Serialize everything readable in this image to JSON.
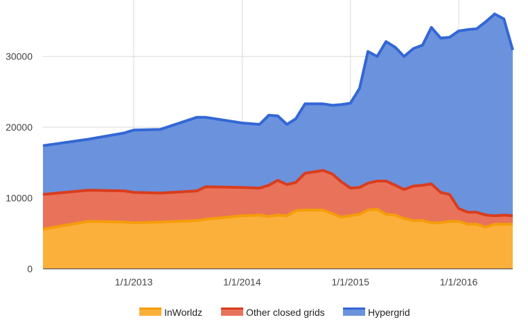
{
  "chart_data": {
    "type": "area",
    "stacked": true,
    "x": [
      "2012-03-01",
      "2012-08-01",
      "2012-12-01",
      "2013-01-01",
      "2013-04-01",
      "2013-08-01",
      "2013-09-01",
      "2014-01-01",
      "2014-03-01",
      "2014-04-01",
      "2014-05-01",
      "2014-06-01",
      "2014-07-01",
      "2014-08-01",
      "2014-10-01",
      "2014-11-01",
      "2014-12-01",
      "2015-01-01",
      "2015-02-01",
      "2015-03-01",
      "2015-04-01",
      "2015-05-01",
      "2015-06-01",
      "2015-07-01",
      "2015-08-01",
      "2015-09-01",
      "2015-10-01",
      "2015-11-01",
      "2015-12-01",
      "2016-01-01",
      "2016-02-01",
      "2016-03-01",
      "2016-04-01",
      "2016-05-01",
      "2016-06-01",
      "2016-07-01"
    ],
    "series": [
      {
        "name": "InWorldz",
        "color": "#fbb03b",
        "line_color": "#f59d0b",
        "values": [
          5600,
          6700,
          6600,
          6500,
          6600,
          6800,
          7000,
          7500,
          7600,
          7400,
          7600,
          7500,
          8200,
          8300,
          8300,
          7800,
          7300,
          7500,
          7700,
          8300,
          8400,
          7700,
          7600,
          7100,
          6800,
          6800,
          6500,
          6500,
          6700,
          6700,
          6300,
          6300,
          5900,
          6300,
          6300,
          6300
        ]
      },
      {
        "name": "Other closed grids",
        "color": "#e8735a",
        "line_color": "#d93d1e",
        "values": [
          4900,
          4400,
          4400,
          4300,
          4100,
          4200,
          4600,
          4000,
          3800,
          4400,
          4900,
          4400,
          4000,
          5200,
          5600,
          5600,
          5000,
          3900,
          3800,
          3800,
          4000,
          4700,
          4200,
          4100,
          4900,
          5000,
          5500,
          4300,
          3800,
          1800,
          1700,
          1700,
          1700,
          1200,
          1300,
          1200
        ]
      },
      {
        "name": "Hypergrid",
        "color": "#6b92dc",
        "line_color": "#3367d6",
        "values": [
          6900,
          7200,
          8200,
          8800,
          9000,
          10400,
          9800,
          9100,
          9000,
          9900,
          9100,
          8500,
          9000,
          9800,
          9400,
          9700,
          10900,
          12000,
          14000,
          18600,
          17600,
          19700,
          19500,
          18800,
          19400,
          19800,
          22100,
          21800,
          22200,
          25100,
          25800,
          25900,
          27300,
          28500,
          27700,
          23400
        ]
      }
    ],
    "x_ticks": [
      {
        "date": "2013-01-01",
        "label": "1/1/2013"
      },
      {
        "date": "2014-01-01",
        "label": "1/1/2014"
      },
      {
        "date": "2015-01-01",
        "label": "1/1/2015"
      },
      {
        "date": "2016-01-01",
        "label": "1/1/2016"
      }
    ],
    "x_range": [
      "2012-03-01",
      "2016-07-01"
    ],
    "y_ticks": [
      {
        "value": 0,
        "label": "0"
      },
      {
        "value": 10000,
        "label": "10000"
      },
      {
        "value": 20000,
        "label": "20000"
      },
      {
        "value": 30000,
        "label": "30000"
      }
    ],
    "ylim": [
      0,
      37000
    ],
    "grid": true,
    "legend_position": "bottom",
    "title": "",
    "xlabel": "",
    "ylabel": ""
  }
}
